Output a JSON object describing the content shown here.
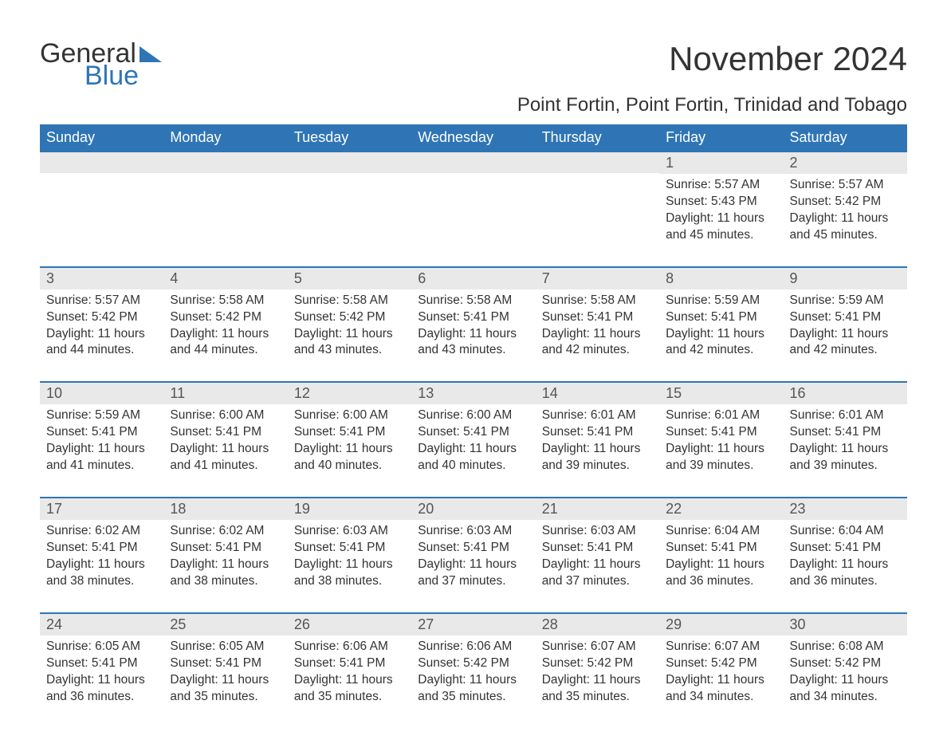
{
  "logo": {
    "text_general": "General",
    "text_blue": "Blue",
    "shape_color": "#2f75b5"
  },
  "title": "November 2024",
  "location": "Point Fortin, Point Fortin, Trinidad and Tobago",
  "colors": {
    "header_bg": "#2f75b5",
    "header_text": "#ffffff",
    "row_divider": "#2f75b5",
    "daynum_bg": "#e9e9e9",
    "body_text": "#333333",
    "page_bg": "#ffffff"
  },
  "typography": {
    "title_fontsize": 42,
    "location_fontsize": 24,
    "dow_fontsize": 18,
    "daynum_fontsize": 18,
    "body_fontsize": 15.5,
    "font_family": "Arial"
  },
  "day_labels": [
    "Sunday",
    "Monday",
    "Tuesday",
    "Wednesday",
    "Thursday",
    "Friday",
    "Saturday"
  ],
  "weeks": [
    [
      {
        "day": "",
        "sunrise": "",
        "sunset": "",
        "daylight": ""
      },
      {
        "day": "",
        "sunrise": "",
        "sunset": "",
        "daylight": ""
      },
      {
        "day": "",
        "sunrise": "",
        "sunset": "",
        "daylight": ""
      },
      {
        "day": "",
        "sunrise": "",
        "sunset": "",
        "daylight": ""
      },
      {
        "day": "",
        "sunrise": "",
        "sunset": "",
        "daylight": ""
      },
      {
        "day": "1",
        "sunrise": "Sunrise: 5:57 AM",
        "sunset": "Sunset: 5:43 PM",
        "daylight": "Daylight: 11 hours and 45 minutes."
      },
      {
        "day": "2",
        "sunrise": "Sunrise: 5:57 AM",
        "sunset": "Sunset: 5:42 PM",
        "daylight": "Daylight: 11 hours and 45 minutes."
      }
    ],
    [
      {
        "day": "3",
        "sunrise": "Sunrise: 5:57 AM",
        "sunset": "Sunset: 5:42 PM",
        "daylight": "Daylight: 11 hours and 44 minutes."
      },
      {
        "day": "4",
        "sunrise": "Sunrise: 5:58 AM",
        "sunset": "Sunset: 5:42 PM",
        "daylight": "Daylight: 11 hours and 44 minutes."
      },
      {
        "day": "5",
        "sunrise": "Sunrise: 5:58 AM",
        "sunset": "Sunset: 5:42 PM",
        "daylight": "Daylight: 11 hours and 43 minutes."
      },
      {
        "day": "6",
        "sunrise": "Sunrise: 5:58 AM",
        "sunset": "Sunset: 5:41 PM",
        "daylight": "Daylight: 11 hours and 43 minutes."
      },
      {
        "day": "7",
        "sunrise": "Sunrise: 5:58 AM",
        "sunset": "Sunset: 5:41 PM",
        "daylight": "Daylight: 11 hours and 42 minutes."
      },
      {
        "day": "8",
        "sunrise": "Sunrise: 5:59 AM",
        "sunset": "Sunset: 5:41 PM",
        "daylight": "Daylight: 11 hours and 42 minutes."
      },
      {
        "day": "9",
        "sunrise": "Sunrise: 5:59 AM",
        "sunset": "Sunset: 5:41 PM",
        "daylight": "Daylight: 11 hours and 42 minutes."
      }
    ],
    [
      {
        "day": "10",
        "sunrise": "Sunrise: 5:59 AM",
        "sunset": "Sunset: 5:41 PM",
        "daylight": "Daylight: 11 hours and 41 minutes."
      },
      {
        "day": "11",
        "sunrise": "Sunrise: 6:00 AM",
        "sunset": "Sunset: 5:41 PM",
        "daylight": "Daylight: 11 hours and 41 minutes."
      },
      {
        "day": "12",
        "sunrise": "Sunrise: 6:00 AM",
        "sunset": "Sunset: 5:41 PM",
        "daylight": "Daylight: 11 hours and 40 minutes."
      },
      {
        "day": "13",
        "sunrise": "Sunrise: 6:00 AM",
        "sunset": "Sunset: 5:41 PM",
        "daylight": "Daylight: 11 hours and 40 minutes."
      },
      {
        "day": "14",
        "sunrise": "Sunrise: 6:01 AM",
        "sunset": "Sunset: 5:41 PM",
        "daylight": "Daylight: 11 hours and 39 minutes."
      },
      {
        "day": "15",
        "sunrise": "Sunrise: 6:01 AM",
        "sunset": "Sunset: 5:41 PM",
        "daylight": "Daylight: 11 hours and 39 minutes."
      },
      {
        "day": "16",
        "sunrise": "Sunrise: 6:01 AM",
        "sunset": "Sunset: 5:41 PM",
        "daylight": "Daylight: 11 hours and 39 minutes."
      }
    ],
    [
      {
        "day": "17",
        "sunrise": "Sunrise: 6:02 AM",
        "sunset": "Sunset: 5:41 PM",
        "daylight": "Daylight: 11 hours and 38 minutes."
      },
      {
        "day": "18",
        "sunrise": "Sunrise: 6:02 AM",
        "sunset": "Sunset: 5:41 PM",
        "daylight": "Daylight: 11 hours and 38 minutes."
      },
      {
        "day": "19",
        "sunrise": "Sunrise: 6:03 AM",
        "sunset": "Sunset: 5:41 PM",
        "daylight": "Daylight: 11 hours and 38 minutes."
      },
      {
        "day": "20",
        "sunrise": "Sunrise: 6:03 AM",
        "sunset": "Sunset: 5:41 PM",
        "daylight": "Daylight: 11 hours and 37 minutes."
      },
      {
        "day": "21",
        "sunrise": "Sunrise: 6:03 AM",
        "sunset": "Sunset: 5:41 PM",
        "daylight": "Daylight: 11 hours and 37 minutes."
      },
      {
        "day": "22",
        "sunrise": "Sunrise: 6:04 AM",
        "sunset": "Sunset: 5:41 PM",
        "daylight": "Daylight: 11 hours and 36 minutes."
      },
      {
        "day": "23",
        "sunrise": "Sunrise: 6:04 AM",
        "sunset": "Sunset: 5:41 PM",
        "daylight": "Daylight: 11 hours and 36 minutes."
      }
    ],
    [
      {
        "day": "24",
        "sunrise": "Sunrise: 6:05 AM",
        "sunset": "Sunset: 5:41 PM",
        "daylight": "Daylight: 11 hours and 36 minutes."
      },
      {
        "day": "25",
        "sunrise": "Sunrise: 6:05 AM",
        "sunset": "Sunset: 5:41 PM",
        "daylight": "Daylight: 11 hours and 35 minutes."
      },
      {
        "day": "26",
        "sunrise": "Sunrise: 6:06 AM",
        "sunset": "Sunset: 5:41 PM",
        "daylight": "Daylight: 11 hours and 35 minutes."
      },
      {
        "day": "27",
        "sunrise": "Sunrise: 6:06 AM",
        "sunset": "Sunset: 5:42 PM",
        "daylight": "Daylight: 11 hours and 35 minutes."
      },
      {
        "day": "28",
        "sunrise": "Sunrise: 6:07 AM",
        "sunset": "Sunset: 5:42 PM",
        "daylight": "Daylight: 11 hours and 35 minutes."
      },
      {
        "day": "29",
        "sunrise": "Sunrise: 6:07 AM",
        "sunset": "Sunset: 5:42 PM",
        "daylight": "Daylight: 11 hours and 34 minutes."
      },
      {
        "day": "30",
        "sunrise": "Sunrise: 6:08 AM",
        "sunset": "Sunset: 5:42 PM",
        "daylight": "Daylight: 11 hours and 34 minutes."
      }
    ]
  ]
}
